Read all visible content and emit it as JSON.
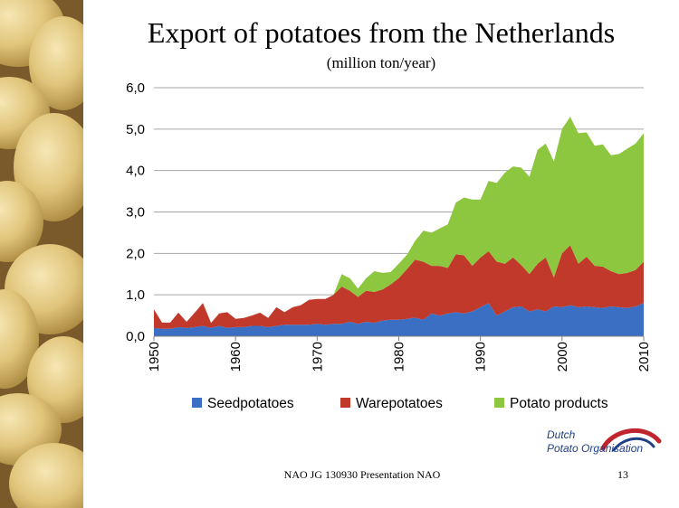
{
  "slide": {
    "title": "Export of potatoes from the Netherlands",
    "subtitle": "(million ton/year)",
    "footer": "NAO JG 130930 Presentation NAO",
    "page_number": "13",
    "logo_line1": "Dutch",
    "logo_line2": "Potato Organisation",
    "logo_colors": {
      "text": "#1f3f86",
      "swoosh_red": "#c0252d",
      "swoosh_blue": "#1f3f86"
    }
  },
  "chart_data": {
    "type": "area",
    "stacked": true,
    "title": "",
    "xlabel": "",
    "ylabel": "",
    "xlim": [
      1950,
      2010
    ],
    "ylim": [
      0,
      6
    ],
    "x_ticks": [
      "1950",
      "1960",
      "1970",
      "1980",
      "1990",
      "2000",
      "2010"
    ],
    "y_ticks": [
      "0,0",
      "1,0",
      "2,0",
      "3,0",
      "4,0",
      "5,0",
      "6,0"
    ],
    "grid": true,
    "legend_position": "bottom",
    "x": [
      1950,
      1951,
      1952,
      1953,
      1954,
      1955,
      1956,
      1957,
      1958,
      1959,
      1960,
      1961,
      1962,
      1963,
      1964,
      1965,
      1966,
      1967,
      1968,
      1969,
      1970,
      1971,
      1972,
      1973,
      1974,
      1975,
      1976,
      1977,
      1978,
      1979,
      1980,
      1981,
      1982,
      1983,
      1984,
      1985,
      1986,
      1987,
      1988,
      1989,
      1990,
      1991,
      1992,
      1993,
      1994,
      1995,
      1996,
      1997,
      1998,
      1999,
      2000,
      2001,
      2002,
      2003,
      2004,
      2005,
      2006,
      2007,
      2008,
      2009,
      2010
    ],
    "series": [
      {
        "name": "Seedpotatoes",
        "color": "#3a6fc4",
        "values": [
          0.2,
          0.18,
          0.18,
          0.22,
          0.2,
          0.22,
          0.25,
          0.2,
          0.25,
          0.2,
          0.22,
          0.22,
          0.25,
          0.25,
          0.22,
          0.25,
          0.28,
          0.28,
          0.28,
          0.28,
          0.3,
          0.28,
          0.3,
          0.3,
          0.35,
          0.3,
          0.35,
          0.32,
          0.38,
          0.4,
          0.4,
          0.42,
          0.45,
          0.4,
          0.55,
          0.5,
          0.55,
          0.58,
          0.55,
          0.6,
          0.7,
          0.8,
          0.5,
          0.6,
          0.7,
          0.72,
          0.6,
          0.65,
          0.6,
          0.72,
          0.7,
          0.75,
          0.7,
          0.72,
          0.7,
          0.68,
          0.72,
          0.7,
          0.68,
          0.72,
          0.8
        ]
      },
      {
        "name": "Warepotatoes",
        "color": "#c0392b",
        "values": [
          0.45,
          0.15,
          0.15,
          0.35,
          0.15,
          0.35,
          0.55,
          0.12,
          0.3,
          0.38,
          0.2,
          0.22,
          0.25,
          0.32,
          0.22,
          0.45,
          0.3,
          0.42,
          0.47,
          0.6,
          0.6,
          0.62,
          0.7,
          0.9,
          0.75,
          0.65,
          0.75,
          0.75,
          0.75,
          0.85,
          1.0,
          1.2,
          1.4,
          1.4,
          1.15,
          1.2,
          1.1,
          1.4,
          1.4,
          1.1,
          1.2,
          1.25,
          1.3,
          1.15,
          1.2,
          1.0,
          0.9,
          1.1,
          1.3,
          0.7,
          1.3,
          1.45,
          1.05,
          1.2,
          1.0,
          1.0,
          0.85,
          0.8,
          0.85,
          0.88,
          1.0
        ]
      },
      {
        "name": "Potato products",
        "color": "#8dc63f",
        "values": [
          0,
          0,
          0,
          0,
          0,
          0,
          0,
          0,
          0,
          0,
          0,
          0,
          0,
          0,
          0,
          0,
          0,
          0,
          0,
          0,
          0,
          0,
          0,
          0.3,
          0.3,
          0.2,
          0.3,
          0.5,
          0.4,
          0.3,
          0.35,
          0.35,
          0.45,
          0.75,
          0.8,
          0.9,
          1.05,
          1.25,
          1.4,
          1.6,
          1.4,
          1.7,
          1.9,
          2.2,
          2.2,
          2.35,
          2.35,
          2.75,
          2.75,
          2.8,
          3.0,
          3.1,
          3.15,
          3.0,
          2.9,
          2.95,
          2.8,
          2.9,
          3.0,
          3.05,
          3.1
        ]
      }
    ]
  }
}
